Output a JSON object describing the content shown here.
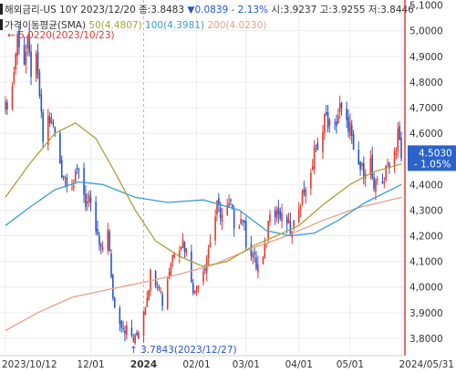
{
  "header": {
    "symbol": "해외금리-US 10Y",
    "date_close": "2023/12/20 종:3.8483",
    "change": "▼0.0839 - 2.13%",
    "high_low": "시:3.9237 고:3.9255 저:3.8446",
    "sma_label": "가격이동평균(SMA)",
    "sma_50": "50(4.4807)",
    "sma_100": "100(4.3981)",
    "sma_200": "200(4.0230)"
  },
  "annotations": {
    "high": "5.0220(2023/10/23)",
    "low": "3.7843(2023/12/27)",
    "last_price": "4.5030",
    "last_change": "- 1.05%"
  },
  "colors": {
    "up": "#e03a2f",
    "down": "#2a55c8",
    "sma50": "#a8a23a",
    "sma100": "#3a9dd4",
    "sma200": "#e6a08a",
    "price_tag": "#2b63c9"
  },
  "chart_data": {
    "type": "candlestick",
    "title": "해외금리-US 10Y",
    "x_ticks": [
      "2023/10/12",
      "12/01",
      "2024",
      "02/01",
      "03/01",
      "04/01",
      "05/01",
      "2024/05/31"
    ],
    "y_ticks": [
      "5,1000",
      "5,0000",
      "4,9000",
      "4,8000",
      "4,7000",
      "4,6000",
      "4,5000",
      "4,4000",
      "4,3000",
      "4,2000",
      "4,1000",
      "4,0000",
      "3,9000",
      "3,8000"
    ],
    "ylim": [
      3.75,
      5.12
    ],
    "x_start": "2023-10-12",
    "close_path": [
      [
        "2023-10-12",
        4.7
      ],
      [
        "2023-10-16",
        4.78
      ],
      [
        "2023-10-19",
        4.98
      ],
      [
        "2023-10-23",
        4.88
      ],
      [
        "2023-10-25",
        4.95
      ],
      [
        "2023-10-27",
        4.84
      ],
      [
        "2023-10-30",
        4.88
      ],
      [
        "2023-11-01",
        4.75
      ],
      [
        "2023-11-03",
        4.57
      ],
      [
        "2023-11-06",
        4.66
      ],
      [
        "2023-11-09",
        4.63
      ],
      [
        "2023-11-14",
        4.45
      ],
      [
        "2023-11-16",
        4.43
      ],
      [
        "2023-11-21",
        4.4
      ],
      [
        "2023-11-24",
        4.47
      ],
      [
        "2023-11-28",
        4.33
      ],
      [
        "2023-11-30",
        4.33
      ],
      [
        "2023-12-04",
        4.22
      ],
      [
        "2023-12-07",
        4.13
      ],
      [
        "2023-12-11",
        4.24
      ],
      [
        "2023-12-13",
        4.02
      ],
      [
        "2023-12-15",
        3.92
      ],
      [
        "2023-12-20",
        3.85
      ],
      [
        "2023-12-27",
        3.79
      ],
      [
        "2024-01-02",
        3.94
      ],
      [
        "2024-01-05",
        4.05
      ],
      [
        "2024-01-10",
        4.02
      ],
      [
        "2024-01-12",
        3.94
      ],
      [
        "2024-01-17",
        4.1
      ],
      [
        "2024-01-19",
        4.15
      ],
      [
        "2024-01-24",
        4.18
      ],
      [
        "2024-01-26",
        4.14
      ],
      [
        "2024-01-31",
        3.97
      ],
      [
        "2024-02-02",
        4.03
      ],
      [
        "2024-02-06",
        4.09
      ],
      [
        "2024-02-08",
        4.15
      ],
      [
        "2024-02-13",
        4.31
      ],
      [
        "2024-02-16",
        4.28
      ],
      [
        "2024-02-21",
        4.32
      ],
      [
        "2024-02-23",
        4.25
      ],
      [
        "2024-02-28",
        4.27
      ],
      [
        "2024-03-01",
        4.18
      ],
      [
        "2024-03-05",
        4.13
      ],
      [
        "2024-03-07",
        4.08
      ],
      [
        "2024-03-11",
        4.1
      ],
      [
        "2024-03-13",
        4.19
      ],
      [
        "2024-03-15",
        4.31
      ],
      [
        "2024-03-19",
        4.3
      ],
      [
        "2024-03-21",
        4.27
      ],
      [
        "2024-03-25",
        4.25
      ],
      [
        "2024-03-28",
        4.2
      ],
      [
        "2024-04-01",
        4.33
      ],
      [
        "2024-04-03",
        4.36
      ],
      [
        "2024-04-05",
        4.4
      ],
      [
        "2024-04-08",
        4.42
      ],
      [
        "2024-04-10",
        4.55
      ],
      [
        "2024-04-12",
        4.52
      ],
      [
        "2024-04-16",
        4.67
      ],
      [
        "2024-04-18",
        4.64
      ],
      [
        "2024-04-22",
        4.62
      ],
      [
        "2024-04-25",
        4.7
      ],
      [
        "2024-04-29",
        4.63
      ],
      [
        "2024-05-01",
        4.63
      ],
      [
        "2024-05-03",
        4.51
      ],
      [
        "2024-05-07",
        4.46
      ],
      [
        "2024-05-09",
        4.46
      ],
      [
        "2024-05-13",
        4.49
      ],
      [
        "2024-05-15",
        4.36
      ],
      [
        "2024-05-17",
        4.42
      ],
      [
        "2024-05-21",
        4.42
      ],
      [
        "2024-05-23",
        4.48
      ],
      [
        "2024-05-28",
        4.54
      ],
      [
        "2024-05-29",
        4.62
      ],
      [
        "2024-05-31",
        4.5
      ]
    ],
    "sma50": [
      [
        "2023-10-12",
        4.35
      ],
      [
        "2023-10-26",
        4.48
      ],
      [
        "2023-11-10",
        4.6
      ],
      [
        "2023-11-22",
        4.64
      ],
      [
        "2023-12-04",
        4.58
      ],
      [
        "2023-12-15",
        4.45
      ],
      [
        "2023-12-27",
        4.3
      ],
      [
        "2024-01-08",
        4.18
      ],
      [
        "2024-01-22",
        4.12
      ],
      [
        "2024-02-05",
        4.08
      ],
      [
        "2024-02-19",
        4.1
      ],
      [
        "2024-03-05",
        4.16
      ],
      [
        "2024-03-19",
        4.2
      ],
      [
        "2024-04-01",
        4.24
      ],
      [
        "2024-04-15",
        4.32
      ],
      [
        "2024-05-01",
        4.4
      ],
      [
        "2024-05-15",
        4.45
      ],
      [
        "2024-05-31",
        4.48
      ]
    ],
    "sma100": [
      [
        "2023-10-12",
        4.24
      ],
      [
        "2023-10-26",
        4.31
      ],
      [
        "2023-11-10",
        4.38
      ],
      [
        "2023-11-24",
        4.41
      ],
      [
        "2023-12-08",
        4.4
      ],
      [
        "2023-12-27",
        4.35
      ],
      [
        "2024-01-15",
        4.33
      ],
      [
        "2024-02-05",
        4.34
      ],
      [
        "2024-02-26",
        4.3
      ],
      [
        "2024-03-13",
        4.22
      ],
      [
        "2024-03-27",
        4.2
      ],
      [
        "2024-04-10",
        4.21
      ],
      [
        "2024-04-24",
        4.26
      ],
      [
        "2024-05-10",
        4.33
      ],
      [
        "2024-05-31",
        4.4
      ]
    ],
    "sma200": [
      [
        "2023-10-12",
        3.83
      ],
      [
        "2023-10-31",
        3.9
      ],
      [
        "2023-11-20",
        3.96
      ],
      [
        "2023-12-11",
        3.99
      ],
      [
        "2024-01-02",
        4.02
      ],
      [
        "2024-01-22",
        4.05
      ],
      [
        "2024-02-12",
        4.09
      ],
      [
        "2024-03-04",
        4.15
      ],
      [
        "2024-03-25",
        4.2
      ],
      [
        "2024-04-15",
        4.26
      ],
      [
        "2024-05-06",
        4.31
      ],
      [
        "2024-05-31",
        4.35
      ]
    ]
  }
}
